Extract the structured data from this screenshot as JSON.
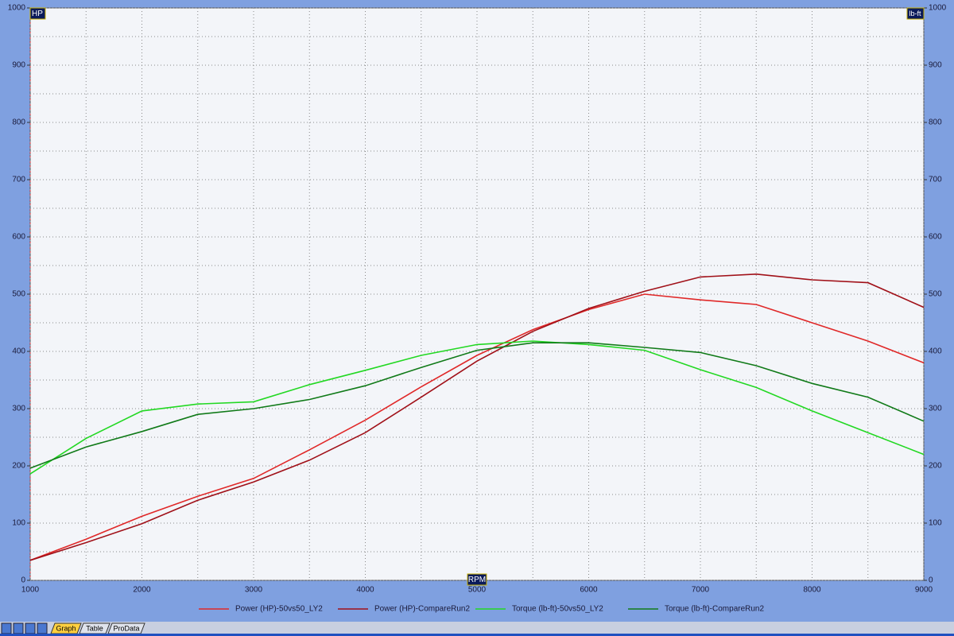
{
  "chart_data": {
    "type": "line",
    "x_label": "RPM",
    "y_label": "HP",
    "y2_label": "lb-ft",
    "x": [
      1000,
      1500,
      2000,
      2500,
      3000,
      3500,
      4000,
      4500,
      5000,
      5500,
      6000,
      6500,
      7000,
      7500,
      8000,
      8500,
      9000
    ],
    "xlim": [
      1000,
      9000
    ],
    "xticks": [
      1000,
      2000,
      3000,
      4000,
      5000,
      6000,
      7000,
      8000,
      9000
    ],
    "ylim": [
      0,
      1000
    ],
    "yticks": [
      0,
      100,
      200,
      300,
      400,
      500,
      600,
      700,
      800,
      900,
      1000
    ],
    "y2lim": [
      0,
      1000
    ],
    "y2ticks": [
      0,
      100,
      200,
      300,
      400,
      500,
      600,
      700,
      800,
      900,
      1000
    ],
    "grid": true,
    "series": [
      {
        "name": "Power (HP)-50vs50_LY2",
        "color": "#e02828",
        "values": [
          35,
          72,
          112,
          147,
          178,
          228,
          280,
          338,
          393,
          438,
          473,
          500,
          490,
          482,
          450,
          418,
          380
        ]
      },
      {
        "name": "Power (HP)-CompareRun2",
        "color": "#a01018",
        "values": [
          35,
          66,
          99,
          140,
          172,
          210,
          258,
          320,
          383,
          435,
          475,
          505,
          530,
          535,
          525,
          520,
          477
        ]
      },
      {
        "name": "Torque (lb-ft)-50vs50_LY2",
        "color": "#22d822",
        "axis": "y2",
        "values": [
          186,
          248,
          296,
          308,
          312,
          342,
          367,
          393,
          412,
          418,
          412,
          402,
          368,
          337,
          296,
          258,
          220
        ]
      },
      {
        "name": "Torque (lb-ft)-CompareRun2",
        "color": "#107a18",
        "axis": "y2",
        "values": [
          196,
          233,
          260,
          290,
          300,
          316,
          340,
          372,
          402,
          415,
          415,
          407,
          398,
          375,
          344,
          320,
          278
        ]
      }
    ]
  },
  "tabs": [
    "Graph",
    "Table",
    "ProData"
  ]
}
